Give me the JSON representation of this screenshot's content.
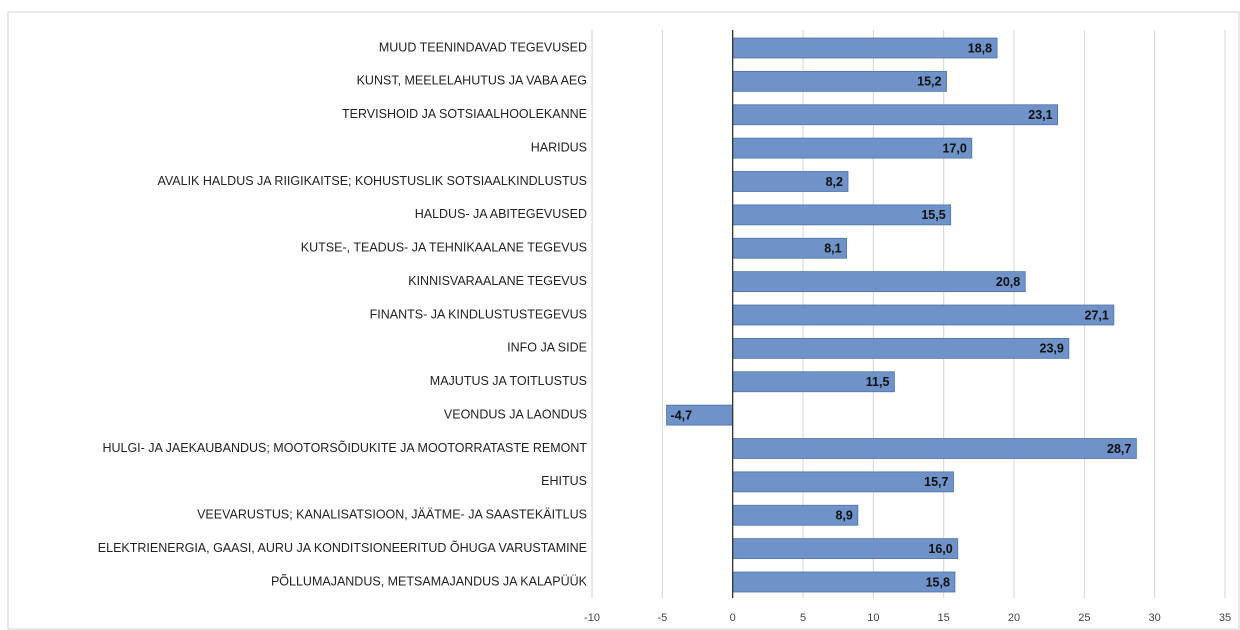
{
  "chart_data": {
    "type": "barh",
    "categories": [
      "MUUD TEENINDAVAD TEGEVUSED",
      "KUNST, MEELELAHUTUS JA VABA AEG",
      "TERVISHOID JA SOTSIAALHOOLEKANNE",
      "HARIDUS",
      "AVALIK HALDUS JA RIIGIKAITSE; KOHUSTUSLIK SOTSIAALKINDLUSTUS",
      "HALDUS- JA ABITEGEVUSED",
      "KUTSE-, TEADUS- JA TEHNIKAALANE TEGEVUS",
      "KINNISVARAALANE TEGEVUS",
      "FINANTS- JA KINDLUSTUSTEGEVUS",
      "INFO JA SIDE",
      "MAJUTUS JA TOITLUSTUS",
      "VEONDUS JA LAONDUS",
      "HULGI- JA JAEKAUBANDUS; MOOTORSÕIDUKITE JA MOOTORRATASTE REMONT",
      "EHITUS",
      "VEEVARUSTUS; KANALISATSIOON, JÄÄTME- JA SAASTEKÄITLUS",
      "ELEKTRIENERGIA, GAASI, AURU JA KONDITSIONEERITUD ÕHUGA VARUSTAMINE",
      "PÕLLUMAJANDUS, METSAMAJANDUS JA KALAPÜÜK"
    ],
    "values": [
      18.8,
      15.2,
      23.1,
      17.0,
      8.2,
      15.5,
      8.1,
      20.8,
      27.1,
      23.9,
      11.5,
      -4.7,
      28.7,
      15.7,
      8.9,
      16.0,
      15.8
    ],
    "value_labels": [
      "18,8",
      "15,2",
      "23,1",
      "17,0",
      "8,2",
      "15,5",
      "8,1",
      "20,8",
      "27,1",
      "23,9",
      "11,5",
      "-4,7",
      "28,7",
      "15,7",
      "8,9",
      "16,0",
      "15,8"
    ],
    "color": "#6f93c8",
    "xlim": [
      -10,
      35
    ],
    "xticks": [
      -10,
      -5,
      0,
      5,
      10,
      15,
      20,
      25,
      30,
      35
    ],
    "grid": true
  }
}
